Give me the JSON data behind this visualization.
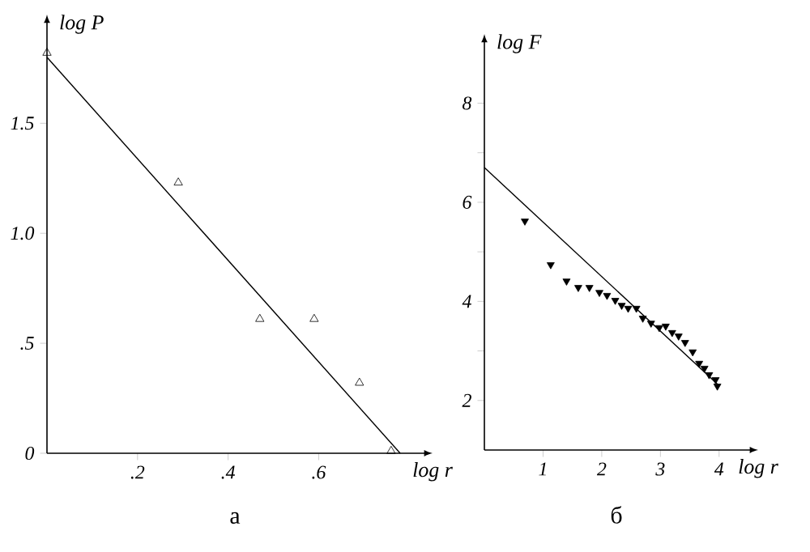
{
  "chart_data": [
    {
      "type": "scatter",
      "xlabel": "log r",
      "ylabel": "log P",
      "annotations": [
        "а"
      ],
      "xlim": [
        0,
        0.83
      ],
      "ylim": [
        0,
        1.95
      ],
      "xticks": [
        {
          "value": 0.2,
          "label": ".2"
        },
        {
          "value": 0.4,
          "label": ".4"
        },
        {
          "value": 0.6,
          "label": ".6"
        }
      ],
      "yticks": [
        0,
        {
          "value": 0.5,
          "label": ".5"
        },
        {
          "value": 1.0,
          "label": "1.0"
        },
        {
          "value": 1.5,
          "label": "1.5"
        }
      ],
      "series": [
        {
          "marker": "triangle",
          "color": "#000000",
          "x": [
            0,
            0.29,
            0.47,
            0.59,
            0.69,
            0.76
          ],
          "values": [
            1.82,
            1.23,
            0.61,
            0.61,
            0.32,
            0.01
          ]
        },
        {
          "type": "line",
          "marker": "none",
          "color": "#000000",
          "x": [
            0,
            0.78
          ],
          "values": [
            1.8,
            0
          ]
        }
      ]
    },
    {
      "type": "scatter",
      "xlabel": "log r",
      "ylabel": "log F",
      "annotations": [
        "б"
      ],
      "xlim": [
        0,
        4.5
      ],
      "ylim": [
        1,
        9.2
      ],
      "xticks": [
        1,
        2,
        3,
        4
      ],
      "yticks": [
        2,
        {
          "value": 3,
          "label": null
        },
        4,
        {
          "value": 5,
          "label": null
        },
        6,
        {
          "value": 7,
          "label": null
        },
        8
      ],
      "series": [
        {
          "marker": "triangle",
          "color": "#000000",
          "x": [
            0.69,
            1.13,
            1.4,
            1.6,
            1.79,
            1.96,
            2.09,
            2.23,
            2.34,
            2.45,
            2.59,
            2.7,
            2.84,
            2.98,
            3.09,
            3.2,
            3.31,
            3.42,
            3.55,
            3.66,
            3.75,
            3.83,
            3.94,
            3.97
          ],
          "values": [
            5.62,
            4.74,
            4.41,
            4.28,
            4.28,
            4.18,
            4.12,
            4.02,
            3.92,
            3.86,
            3.86,
            3.66,
            3.56,
            3.47,
            3.5,
            3.37,
            3.3,
            3.17,
            2.98,
            2.75,
            2.65,
            2.52,
            2.42,
            2.29
          ]
        },
        {
          "type": "line",
          "marker": "none",
          "color": "#000000",
          "x": [
            0,
            4
          ],
          "values": [
            6.7,
            2.3
          ]
        }
      ]
    }
  ]
}
